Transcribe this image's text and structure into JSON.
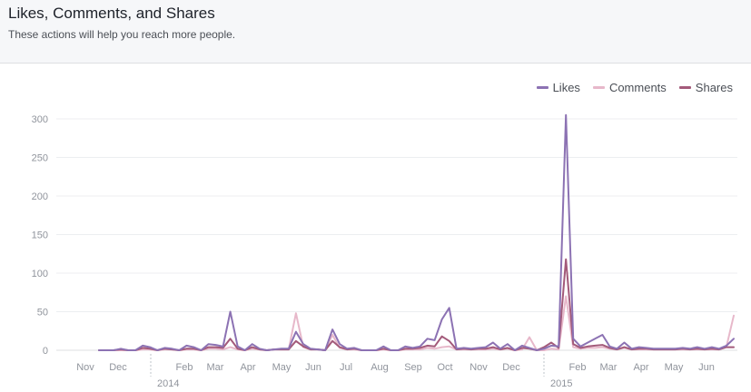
{
  "header": {
    "title": "Likes, Comments, and Shares",
    "subtitle": "These actions will help you reach more people."
  },
  "chart_data": {
    "type": "line",
    "title": "Likes, Comments, and Shares",
    "subtitle": "These actions will help you reach more people.",
    "ylim": [
      0,
      300
    ],
    "yticks": [
      0,
      50,
      100,
      150,
      200,
      250,
      300
    ],
    "grid": true,
    "legend_position": "top-right",
    "xticks": [
      "Nov",
      "Dec",
      "Feb",
      "Mar",
      "Apr",
      "May",
      "Jun",
      "Jul",
      "Aug",
      "Sep",
      "Oct",
      "Nov",
      "Dec",
      "Feb",
      "Mar",
      "Apr",
      "May",
      "Jun"
    ],
    "year_labels": [
      "2014",
      "2015"
    ],
    "x": [
      0,
      1,
      2,
      3,
      4,
      5,
      6,
      7,
      8,
      9,
      10,
      11,
      12,
      13,
      14,
      15,
      16,
      17,
      18,
      19,
      20,
      21,
      22,
      23,
      24,
      25,
      26,
      27,
      28,
      29,
      30,
      31,
      32,
      33,
      34,
      35,
      36,
      37,
      38,
      39,
      40,
      41,
      42,
      43,
      44,
      45,
      46,
      47,
      48,
      49,
      50,
      51,
      52,
      53,
      54,
      55,
      56,
      57,
      58,
      59,
      60,
      61,
      62,
      63,
      64,
      65,
      66,
      67,
      68,
      69,
      70,
      71,
      72,
      73,
      74,
      75,
      76,
      77,
      78,
      79,
      80,
      81,
      82,
      83,
      84,
      85,
      86,
      87
    ],
    "series": [
      {
        "name": "Likes",
        "color": "#8c72b3",
        "values": [
          0,
          0,
          0,
          2,
          0,
          0,
          6,
          4,
          0,
          3,
          2,
          0,
          6,
          4,
          0,
          8,
          7,
          5,
          50,
          5,
          0,
          8,
          2,
          0,
          1,
          2,
          2,
          24,
          8,
          2,
          1,
          0,
          27,
          8,
          2,
          3,
          0,
          0,
          0,
          5,
          0,
          0,
          5,
          3,
          5,
          15,
          13,
          40,
          55,
          2,
          3,
          2,
          3,
          4,
          10,
          2,
          8,
          0,
          6,
          3,
          0,
          2,
          6,
          5,
          305,
          15,
          5,
          10,
          15,
          20,
          5,
          2,
          10,
          2,
          4,
          3,
          2,
          2,
          2,
          2,
          3,
          2,
          4,
          2,
          4,
          2,
          6,
          15
        ]
      },
      {
        "name": "Comments",
        "color": "#e7b8ca",
        "values": [
          0,
          0,
          0,
          0,
          0,
          0,
          1,
          1,
          0,
          1,
          1,
          0,
          1,
          1,
          0,
          2,
          2,
          1,
          4,
          1,
          0,
          2,
          1,
          0,
          1,
          1,
          1,
          48,
          4,
          1,
          1,
          0,
          20,
          3,
          1,
          1,
          0,
          0,
          0,
          1,
          0,
          0,
          1,
          1,
          1,
          3,
          2,
          4,
          5,
          1,
          1,
          1,
          1,
          1,
          2,
          1,
          2,
          0,
          1,
          17,
          0,
          0,
          2,
          1,
          70,
          4,
          2,
          3,
          3,
          4,
          2,
          1,
          3,
          1,
          1,
          1,
          1,
          1,
          1,
          1,
          1,
          1,
          1,
          1,
          1,
          1,
          5,
          45
        ]
      },
      {
        "name": "Shares",
        "color": "#a35a7a",
        "values": [
          0,
          0,
          0,
          1,
          0,
          0,
          3,
          2,
          0,
          2,
          1,
          0,
          2,
          2,
          0,
          4,
          4,
          3,
          15,
          2,
          0,
          4,
          1,
          0,
          1,
          1,
          1,
          12,
          5,
          1,
          1,
          0,
          12,
          4,
          1,
          2,
          0,
          0,
          0,
          2,
          0,
          0,
          2,
          2,
          3,
          6,
          5,
          18,
          12,
          1,
          2,
          1,
          2,
          2,
          4,
          1,
          3,
          0,
          3,
          2,
          0,
          4,
          10,
          3,
          118,
          8,
          3,
          5,
          6,
          7,
          3,
          1,
          4,
          1,
          2,
          2,
          1,
          1,
          1,
          1,
          2,
          1,
          2,
          1,
          2,
          1,
          4,
          4
        ]
      }
    ]
  }
}
